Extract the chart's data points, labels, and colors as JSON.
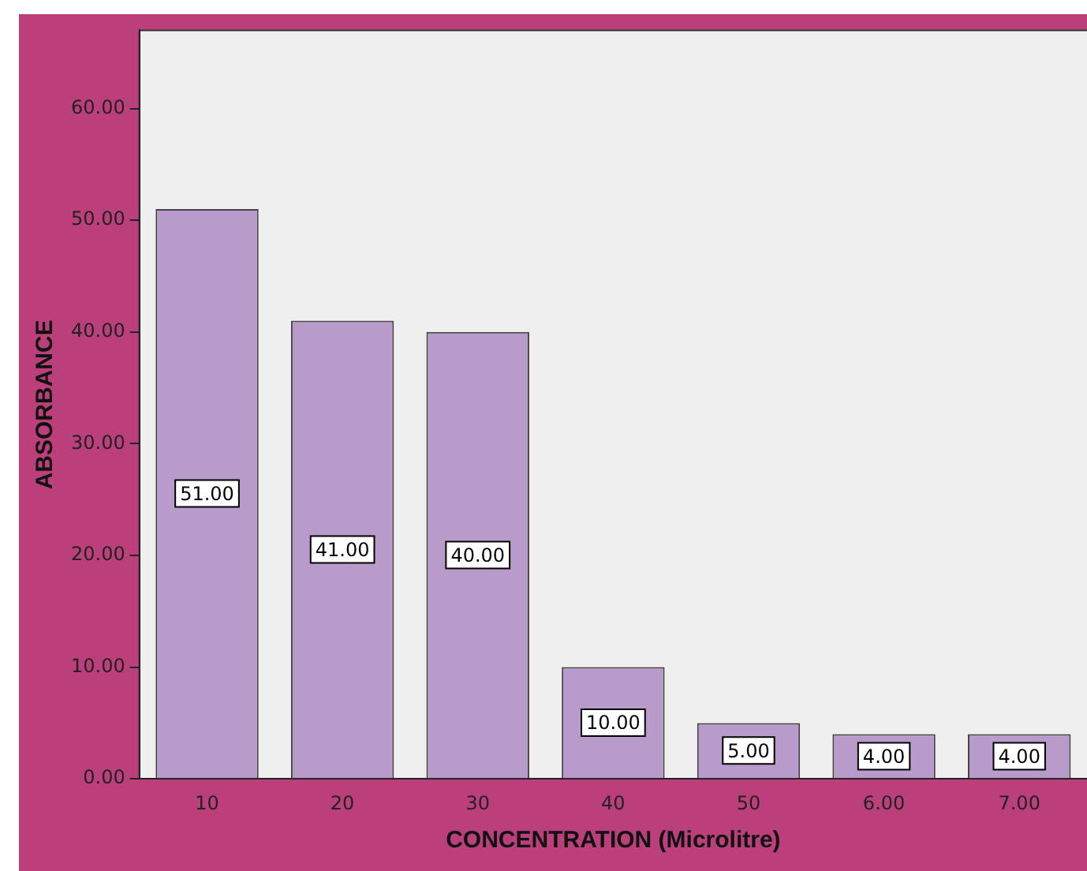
{
  "chart_data": {
    "type": "bar",
    "xlabel": "CONCENTRATION (Microlitre)",
    "ylabel": "ABSORBANCE",
    "categories": [
      "10",
      "20",
      "30",
      "40",
      "50",
      "6.00",
      "7.00"
    ],
    "values": [
      51,
      41,
      40,
      10,
      5,
      4,
      4
    ],
    "value_labels": [
      "51.00",
      "41.00",
      "40.00",
      "10.00",
      "5.00",
      "4.00",
      "4.00"
    ],
    "color": "#b89bca",
    "ylim": [
      0,
      67
    ],
    "yticks": [
      {
        "value": 0,
        "label": "0.00"
      },
      {
        "value": 10,
        "label": "10.00"
      },
      {
        "value": 20,
        "label": "20.00"
      },
      {
        "value": 30,
        "label": "30.00"
      },
      {
        "value": 40,
        "label": "40.00"
      },
      {
        "value": 50,
        "label": "50.00"
      },
      {
        "value": 60,
        "label": "60.00"
      }
    ],
    "grid": false,
    "legend": false
  }
}
